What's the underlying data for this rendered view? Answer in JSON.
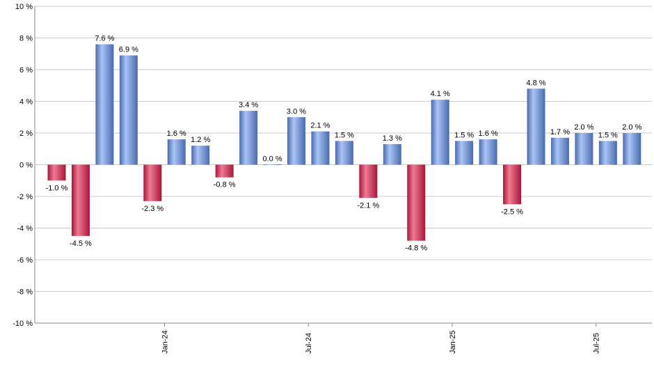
{
  "chart_data": {
    "type": "bar",
    "title": "",
    "xlabel": "",
    "ylabel": "",
    "ylim": [
      -10,
      10
    ],
    "yticks": [
      -10,
      -8,
      -6,
      -4,
      -2,
      0,
      2,
      4,
      6,
      8,
      10
    ],
    "ytick_suffix": " %",
    "grid": true,
    "values": [
      -1.0,
      -4.5,
      7.6,
      6.9,
      -2.3,
      1.6,
      1.2,
      -0.8,
      3.4,
      0.0,
      3.0,
      2.1,
      1.5,
      -2.1,
      1.3,
      -4.8,
      4.1,
      1.5,
      1.6,
      -2.5,
      4.8,
      1.7,
      2.0,
      1.5,
      2.0
    ],
    "data_labels": [
      "-1.0 %",
      "-4.5 %",
      "7.6 %",
      "6.9 %",
      "-2.3 %",
      "1.6 %",
      "1.2 %",
      "-0.8 %",
      "3.4 %",
      "0.0 %",
      "3.0 %",
      "2.1 %",
      "1.5 %",
      "-2.1 %",
      "1.3 %",
      "-4.8 %",
      "4.1 %",
      "1.5 %",
      "1.6 %",
      "-2.5 %",
      "4.8 %",
      "1.7 %",
      "2.0 %",
      "1.5 %",
      "2.0 %"
    ],
    "x_tick_labels": [
      {
        "label": "Jan-24",
        "after_bar": 4
      },
      {
        "label": "Jul-24",
        "after_bar": 10
      },
      {
        "label": "Jan-25",
        "after_bar": 16
      },
      {
        "label": "Jul-25",
        "after_bar": 22
      }
    ],
    "colors": {
      "positive_light": "#a9c4f5",
      "positive_dark": "#4a6aae",
      "negative_light": "#f07a92",
      "negative_dark": "#a8163a",
      "grid": "#c8c8c8",
      "axis": "#888888"
    }
  }
}
